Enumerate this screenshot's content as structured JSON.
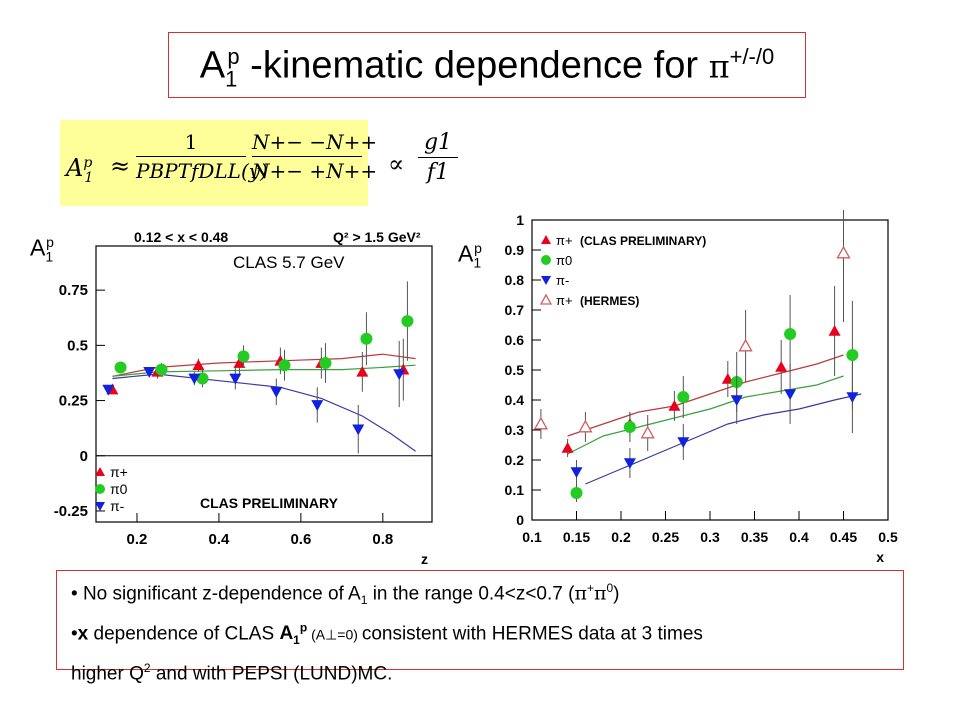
{
  "title": {
    "main_a": "A",
    "sub_p": "1",
    "sup_p": "p",
    "main_b": " -kinematic dependence for ",
    "pi": "π",
    "charge": "+/-/0"
  },
  "formula": {
    "lhs_A": "A",
    "lhs_sup": "p",
    "lhs_sub": "1",
    "approx": "≈",
    "frac1_num": "1",
    "frac1_den": "PBPTfDLL(y)",
    "frac2_num": "N+− −N++",
    "frac2_den": "N+− +N++",
    "propto": "∝",
    "frac3_num": "g1",
    "frac3_den": "f1"
  },
  "left_axis_label": {
    "main": "A",
    "sub": "1",
    "sup": "p"
  },
  "right_axis_label": {
    "main": "A",
    "sub": "1",
    "sup": "p"
  },
  "chart_data": [
    {
      "type": "scatter",
      "header_left": "0.12 < x < 0.48",
      "header_right": "Q² > 1.5 GeV²",
      "annotation": "CLAS 5.7 GeV",
      "watermark": "CLAS PRELIMINARY",
      "xlabel": "z",
      "ylabel": "A1p",
      "xlim": [
        0.1,
        0.92
      ],
      "ylim": [
        -0.3,
        0.95
      ],
      "x_ticks": [
        "0.2",
        "0.4",
        "0.6",
        "0.8"
      ],
      "y_ticks": [
        "0.75",
        "0.5",
        "0.25",
        "0",
        "-0.25"
      ],
      "y_tick_values": [
        0.75,
        0.5,
        0.25,
        0,
        -0.25
      ],
      "x_tick_values": [
        0.2,
        0.4,
        0.6,
        0.8
      ],
      "legend": [
        {
          "label": "π+",
          "color": "#e8001c",
          "marker": "triangle-up"
        },
        {
          "label": "π0",
          "color": "#22cc22",
          "marker": "circle"
        },
        {
          "label": "π-",
          "color": "#1122dd",
          "marker": "triangle-down"
        }
      ],
      "series": [
        {
          "name": "π+",
          "color": "#e8001c",
          "marker": "triangle-up",
          "points": [
            [
              0.14,
              0.3,
              0.01
            ],
            [
              0.25,
              0.38,
              0.03
            ],
            [
              0.35,
              0.41,
              0.03
            ],
            [
              0.45,
              0.42,
              0.05
            ],
            [
              0.55,
              0.43,
              0.06
            ],
            [
              0.65,
              0.42,
              0.07
            ],
            [
              0.75,
              0.38,
              0.09
            ],
            [
              0.85,
              0.39,
              0.14
            ]
          ]
        },
        {
          "name": "π0",
          "color": "#22cc22",
          "marker": "circle",
          "points": [
            [
              0.16,
              0.4,
              0.02
            ],
            [
              0.26,
              0.39,
              0.03
            ],
            [
              0.36,
              0.35,
              0.04
            ],
            [
              0.46,
              0.45,
              0.05
            ],
            [
              0.56,
              0.41,
              0.07
            ],
            [
              0.66,
              0.42,
              0.09
            ],
            [
              0.76,
              0.53,
              0.12
            ],
            [
              0.86,
              0.61,
              0.18
            ]
          ]
        },
        {
          "name": "π-",
          "color": "#1122dd",
          "marker": "triangle-down",
          "points": [
            [
              0.13,
              0.3,
              0.01
            ],
            [
              0.23,
              0.38,
              0.02
            ],
            [
              0.34,
              0.35,
              0.03
            ],
            [
              0.44,
              0.35,
              0.05
            ],
            [
              0.54,
              0.29,
              0.06
            ],
            [
              0.64,
              0.23,
              0.08
            ],
            [
              0.74,
              0.12,
              0.11
            ],
            [
              0.84,
              0.37,
              0.15
            ]
          ]
        }
      ],
      "curves": [
        {
          "color": "#b83c3c",
          "points": [
            [
              0.14,
              0.36
            ],
            [
              0.25,
              0.4
            ],
            [
              0.4,
              0.42
            ],
            [
              0.55,
              0.43
            ],
            [
              0.7,
              0.44
            ],
            [
              0.8,
              0.46
            ],
            [
              0.88,
              0.44
            ]
          ]
        },
        {
          "color": "#3ca03c",
          "points": [
            [
              0.14,
              0.36
            ],
            [
              0.25,
              0.38
            ],
            [
              0.4,
              0.385
            ],
            [
              0.55,
              0.39
            ],
            [
              0.7,
              0.39
            ],
            [
              0.8,
              0.4
            ],
            [
              0.88,
              0.41
            ]
          ]
        },
        {
          "color": "#3a3aa0",
          "points": [
            [
              0.14,
              0.35
            ],
            [
              0.25,
              0.37
            ],
            [
              0.4,
              0.34
            ],
            [
              0.55,
              0.31
            ],
            [
              0.65,
              0.26
            ],
            [
              0.75,
              0.18
            ],
            [
              0.82,
              0.1
            ],
            [
              0.88,
              0.02
            ]
          ]
        }
      ]
    },
    {
      "type": "scatter",
      "xlabel": "x",
      "ylabel": "A1p",
      "xlim": [
        0.1,
        0.5
      ],
      "ylim": [
        0,
        1
      ],
      "x_ticks": [
        "0.1",
        "0.15",
        "0.2",
        "0.25",
        "0.3",
        "0.35",
        "0.4",
        "0.45",
        "0.5"
      ],
      "x_tick_values": [
        0.1,
        0.15,
        0.2,
        0.25,
        0.3,
        0.35,
        0.4,
        0.45,
        0.5
      ],
      "y_ticks": [
        "1",
        "0.9",
        "0.8",
        "0.7",
        "0.6",
        "0.5",
        "0.4",
        "0.3",
        "0.2",
        "0.1",
        "0"
      ],
      "y_tick_values": [
        1,
        0.9,
        0.8,
        0.7,
        0.6,
        0.5,
        0.4,
        0.3,
        0.2,
        0.1,
        0
      ],
      "legend": [
        {
          "label": "π+",
          "note": "(CLAS PRELIMINARY)",
          "color": "#e8001c",
          "marker": "triangle-up"
        },
        {
          "label": "π0",
          "note": "",
          "color": "#22cc22",
          "marker": "circle"
        },
        {
          "label": "π-",
          "note": "",
          "color": "#1122dd",
          "marker": "triangle-down"
        },
        {
          "label": "π+",
          "note": "(HERMES)",
          "color": "#d06060",
          "marker": "triangle-up-open"
        }
      ],
      "series": [
        {
          "name": "π+ (CLAS PRELIMINARY)",
          "color": "#e8001c",
          "marker": "triangle-up",
          "points": [
            [
              0.14,
              0.24,
              0.03
            ],
            [
              0.21,
              0.32,
              0.04
            ],
            [
              0.26,
              0.38,
              0.05
            ],
            [
              0.32,
              0.47,
              0.06
            ],
            [
              0.38,
              0.51,
              0.09
            ],
            [
              0.44,
              0.63,
              0.15
            ]
          ]
        },
        {
          "name": "π0",
          "color": "#22cc22",
          "marker": "circle",
          "points": [
            [
              0.15,
              0.09,
              0.03
            ],
            [
              0.21,
              0.31,
              0.05
            ],
            [
              0.27,
              0.41,
              0.07
            ],
            [
              0.33,
              0.46,
              0.1
            ],
            [
              0.39,
              0.62,
              0.13
            ],
            [
              0.46,
              0.55,
              0.18
            ]
          ]
        },
        {
          "name": "π-",
          "color": "#1122dd",
          "marker": "triangle-down",
          "points": [
            [
              0.15,
              0.16,
              0.04
            ],
            [
              0.21,
              0.19,
              0.05
            ],
            [
              0.27,
              0.26,
              0.06
            ],
            [
              0.33,
              0.4,
              0.08
            ],
            [
              0.39,
              0.42,
              0.1
            ],
            [
              0.46,
              0.41,
              0.12
            ]
          ]
        },
        {
          "name": "π+ (HERMES)",
          "color": "#d06060",
          "marker": "triangle-up-open",
          "points": [
            [
              0.11,
              0.32,
              0.05
            ],
            [
              0.16,
              0.31,
              0.05
            ],
            [
              0.23,
              0.29,
              0.06
            ],
            [
              0.34,
              0.58,
              0.12
            ],
            [
              0.45,
              0.89,
              0.23
            ]
          ]
        }
      ],
      "curves": [
        {
          "color": "#b83c3c",
          "points": [
            [
              0.14,
              0.28
            ],
            [
              0.18,
              0.32
            ],
            [
              0.22,
              0.36
            ],
            [
              0.26,
              0.38
            ],
            [
              0.3,
              0.42
            ],
            [
              0.34,
              0.46
            ],
            [
              0.38,
              0.49
            ],
            [
              0.42,
              0.52
            ],
            [
              0.45,
              0.55
            ]
          ]
        },
        {
          "color": "#3ca03c",
          "points": [
            [
              0.14,
              0.22
            ],
            [
              0.18,
              0.28
            ],
            [
              0.22,
              0.31
            ],
            [
              0.26,
              0.34
            ],
            [
              0.3,
              0.37
            ],
            [
              0.34,
              0.41
            ],
            [
              0.38,
              0.43
            ],
            [
              0.42,
              0.45
            ],
            [
              0.45,
              0.48
            ]
          ]
        },
        {
          "color": "#3a3aa0",
          "points": [
            [
              0.16,
              0.12
            ],
            [
              0.2,
              0.17
            ],
            [
              0.24,
              0.22
            ],
            [
              0.28,
              0.27
            ],
            [
              0.32,
              0.32
            ],
            [
              0.36,
              0.35
            ],
            [
              0.4,
              0.37
            ],
            [
              0.44,
              0.4
            ],
            [
              0.47,
              0.42
            ]
          ]
        }
      ]
    }
  ],
  "notes": {
    "line1_a": "No significant z-dependence of A",
    "line1_sub": "1",
    "line1_b": " in the range 0.4<z<0.7 (",
    "line1_pi": "π",
    "line1_plus": "+",
    "line1_pi0": "π",
    "line1_zero": "0",
    "line1_c": ")",
    "line2_x": "x",
    "line2_a": " dependence of CLAS  ",
    "line2_A": "A",
    "line2_sub": "1",
    "line2_sup": "p",
    "line2_paren": " (A⊥=0) ",
    "line2_b": "consistent with HERMES data at 3 times",
    "line3_a": "higher Q",
    "line3_sup": "2",
    "line3_b": " and with PEPSI (LUND)MC."
  }
}
